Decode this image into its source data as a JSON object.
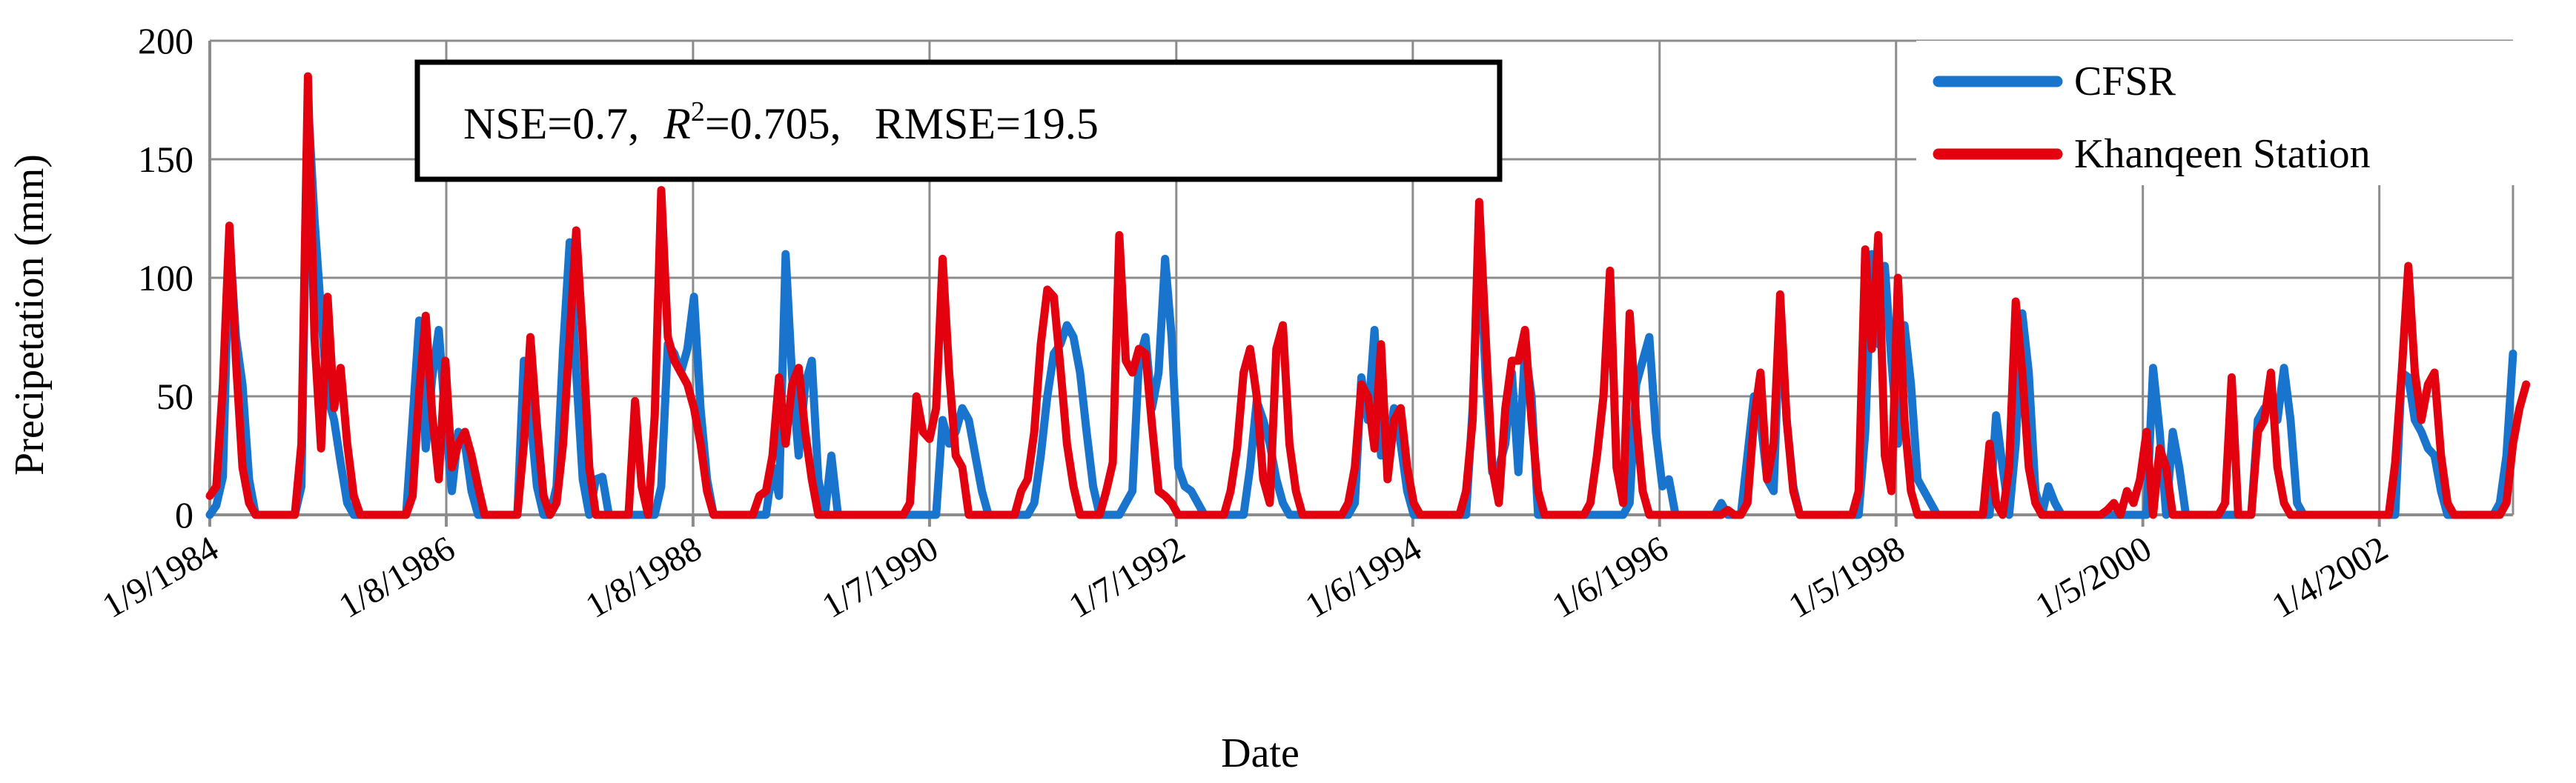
{
  "chart_data": {
    "type": "line",
    "xlabel": "Date",
    "ylabel": "Precipetation (mm)",
    "ylim": [
      0,
      200
    ],
    "yticks": [
      "0",
      "50",
      "100",
      "150",
      "200"
    ],
    "xtick_labels": [
      "1/9/1984",
      "1/8/1986",
      "1/8/1988",
      "1/7/1990",
      "1/7/1992",
      "1/6/1994",
      "1/6/1996",
      "1/5/1998",
      "1/5/2000",
      "1/4/2002"
    ],
    "grid": "both",
    "legend_position": "top-right",
    "stats": {
      "nse": "NSE=0.7,",
      "r2_label": "R",
      "r2_sup": "2",
      "r2_value": "=0.705,",
      "rmse": "RMSE=19.5"
    },
    "x_start": "1984-09",
    "x_end": "2003-05",
    "series": [
      {
        "name": "CFSR",
        "color": "#1874cd",
        "values": [
          0,
          4,
          16,
          118,
          75,
          55,
          15,
          0,
          0,
          0,
          0,
          0,
          0,
          0,
          12,
          175,
          125,
          85,
          50,
          40,
          22,
          5,
          0,
          0,
          0,
          0,
          0,
          0,
          0,
          0,
          0,
          40,
          82,
          28,
          58,
          78,
          40,
          10,
          35,
          30,
          10,
          0,
          0,
          0,
          0,
          0,
          0,
          0,
          65,
          42,
          12,
          0,
          0,
          12,
          70,
          115,
          60,
          15,
          0,
          15,
          16,
          0,
          0,
          0,
          0,
          0,
          0,
          0,
          0,
          12,
          72,
          68,
          60,
          70,
          92,
          45,
          15,
          0,
          0,
          0,
          0,
          0,
          0,
          0,
          0,
          0,
          20,
          8,
          110,
          58,
          25,
          55,
          65,
          15,
          0,
          25,
          0,
          0,
          0,
          0,
          0,
          0,
          0,
          0,
          0,
          0,
          0,
          0,
          0,
          0,
          0,
          0,
          40,
          30,
          35,
          45,
          40,
          25,
          10,
          0,
          0,
          0,
          0,
          0,
          0,
          0,
          5,
          25,
          50,
          68,
          72,
          80,
          75,
          60,
          35,
          12,
          0,
          0,
          0,
          0,
          5,
          10,
          65,
          75,
          45,
          60,
          108,
          75,
          20,
          12,
          10,
          5,
          0,
          0,
          0,
          0,
          0,
          0,
          0,
          20,
          48,
          40,
          30,
          15,
          5,
          0,
          0,
          0,
          0,
          0,
          0,
          0,
          0,
          0,
          0,
          5,
          58,
          40,
          78,
          25,
          30,
          45,
          30,
          10,
          0,
          0,
          0,
          0,
          0,
          0,
          0,
          0,
          0,
          45,
          118,
          58,
          18,
          20,
          30,
          60,
          18,
          70,
          50,
          0,
          0,
          0,
          0,
          0,
          0,
          0,
          0,
          0,
          0,
          0,
          0,
          0,
          0,
          5,
          55,
          65,
          75,
          35,
          12,
          15,
          0,
          0,
          0,
          0,
          0,
          0,
          0,
          5,
          0,
          0,
          0,
          25,
          50,
          40,
          15,
          10,
          85,
          40,
          12,
          0,
          0,
          0,
          0,
          0,
          0,
          0,
          0,
          0,
          0,
          35,
          110,
          72,
          105,
          65,
          30,
          80,
          55,
          15,
          10,
          5,
          0,
          0,
          0,
          0,
          0,
          0,
          0,
          0,
          0,
          42,
          20,
          0,
          30,
          85,
          60,
          10,
          0,
          12,
          5,
          0,
          0,
          0,
          0,
          0,
          0,
          0,
          0,
          0,
          0,
          0,
          0,
          0,
          0,
          62,
          35,
          0,
          35,
          20,
          0,
          0,
          0,
          0,
          0,
          0,
          0,
          0,
          0,
          0,
          0,
          40,
          45,
          45,
          40,
          62,
          40,
          5,
          0,
          0,
          0,
          0,
          0,
          0,
          0,
          0,
          0,
          0,
          0,
          0,
          0,
          0,
          0,
          60,
          58,
          40,
          35,
          28,
          25,
          10,
          0,
          0,
          0,
          0,
          0,
          0,
          0,
          0,
          5,
          25,
          68
        ]
      },
      {
        "name": "Khanqeen Station",
        "color": "#e3000f",
        "values": [
          8,
          12,
          55,
          122,
          65,
          20,
          5,
          0,
          0,
          0,
          0,
          0,
          0,
          0,
          30,
          185,
          75,
          28,
          92,
          45,
          62,
          30,
          8,
          0,
          0,
          0,
          0,
          0,
          0,
          0,
          0,
          8,
          52,
          84,
          42,
          15,
          65,
          20,
          30,
          35,
          25,
          12,
          0,
          0,
          0,
          0,
          0,
          0,
          30,
          75,
          38,
          8,
          0,
          5,
          30,
          75,
          120,
          75,
          20,
          0,
          0,
          0,
          0,
          0,
          0,
          48,
          12,
          0,
          42,
          137,
          75,
          65,
          60,
          55,
          45,
          30,
          10,
          0,
          0,
          0,
          0,
          0,
          0,
          0,
          8,
          10,
          25,
          58,
          30,
          55,
          62,
          35,
          15,
          0,
          0,
          0,
          0,
          0,
          0,
          0,
          0,
          0,
          0,
          0,
          0,
          0,
          0,
          5,
          50,
          35,
          32,
          45,
          108,
          60,
          25,
          20,
          0,
          0,
          0,
          0,
          0,
          0,
          0,
          0,
          10,
          15,
          35,
          72,
          95,
          92,
          62,
          30,
          12,
          0,
          0,
          0,
          0,
          10,
          22,
          118,
          65,
          60,
          70,
          68,
          38,
          10,
          8,
          5,
          0,
          0,
          0,
          0,
          0,
          0,
          0,
          0,
          10,
          28,
          60,
          70,
          50,
          15,
          5,
          70,
          80,
          30,
          10,
          0,
          0,
          0,
          0,
          0,
          0,
          0,
          5,
          20,
          55,
          50,
          28,
          72,
          15,
          40,
          45,
          20,
          5,
          0,
          0,
          0,
          0,
          0,
          0,
          0,
          10,
          40,
          132,
          75,
          20,
          5,
          45,
          65,
          65,
          78,
          40,
          10,
          0,
          0,
          0,
          0,
          0,
          0,
          0,
          5,
          25,
          50,
          103,
          20,
          5,
          85,
          40,
          10,
          0,
          0,
          0,
          0,
          0,
          0,
          0,
          0,
          0,
          0,
          0,
          0,
          2,
          0,
          0,
          5,
          40,
          60,
          15,
          30,
          93,
          40,
          10,
          0,
          0,
          0,
          0,
          0,
          0,
          0,
          0,
          0,
          10,
          112,
          70,
          118,
          25,
          10,
          100,
          40,
          10,
          0,
          0,
          0,
          0,
          0,
          0,
          0,
          0,
          0,
          0,
          0,
          30,
          5,
          0,
          20,
          90,
          60,
          20,
          5,
          0,
          0,
          0,
          0,
          0,
          0,
          0,
          0,
          0,
          0,
          2,
          5,
          0,
          10,
          5,
          15,
          35,
          0,
          28,
          20,
          0,
          0,
          0,
          0,
          0,
          0,
          0,
          0,
          5,
          58,
          0,
          0,
          0,
          35,
          40,
          60,
          20,
          5,
          0,
          0,
          0,
          0,
          0,
          0,
          0,
          0,
          0,
          0,
          0,
          0,
          0,
          0,
          0,
          0,
          22,
          60,
          105,
          60,
          40,
          55,
          60,
          25,
          5,
          0,
          0,
          0,
          0,
          0,
          0,
          0,
          0,
          5,
          30,
          45,
          55
        ]
      }
    ]
  }
}
